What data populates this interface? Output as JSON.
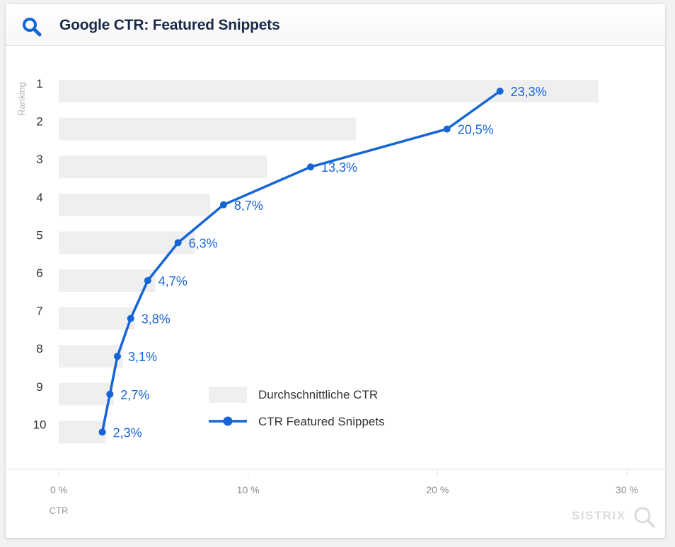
{
  "header": {
    "title": "Google CTR: Featured Snippets"
  },
  "brand": {
    "name": "SISTRIX"
  },
  "colors": {
    "accent": "#1565d6",
    "bar": "#efefef",
    "title": "#1b2a4a",
    "grid": "#e6e6e6"
  },
  "chart_data": {
    "type": "bar",
    "title": "Google CTR: Featured Snippets",
    "ylabel": "Ranking",
    "xlabel": "CTR",
    "categories": [
      "1",
      "2",
      "3",
      "4",
      "5",
      "6",
      "7",
      "8",
      "9",
      "10"
    ],
    "xlim": [
      0,
      30
    ],
    "xticks": [
      0,
      10,
      20,
      30
    ],
    "xtick_labels": [
      "0 %",
      "10 %",
      "20 %",
      "30 %"
    ],
    "series": [
      {
        "name": "Durchschnittliche CTR",
        "type": "bar",
        "values": [
          28.5,
          15.7,
          11.0,
          8.0,
          7.2,
          5.1,
          4.0,
          3.4,
          2.9,
          2.5
        ]
      },
      {
        "name": "CTR Featured Snippets",
        "type": "line",
        "values": [
          23.3,
          20.5,
          13.3,
          8.7,
          6.3,
          4.7,
          3.8,
          3.1,
          2.7,
          2.3
        ],
        "labels": [
          "23,3%",
          "20,5%",
          "13,3%",
          "8,7%",
          "6,3%",
          "4,7%",
          "3,8%",
          "3,1%",
          "2,7%",
          "2,3%"
        ]
      }
    ],
    "legend": [
      "Durchschnittliche CTR",
      "CTR Featured Snippets"
    ],
    "legend_position": "bottom-center",
    "grid": "vertical"
  }
}
